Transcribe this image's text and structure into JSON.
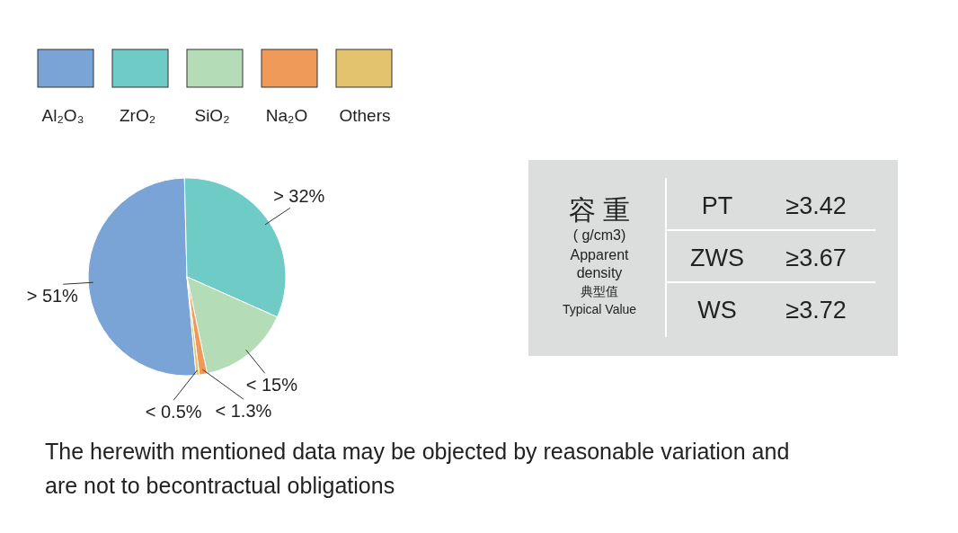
{
  "chart_data": [
    {
      "type": "pie",
      "categories": [
        "Al₂O₃",
        "ZrO₂",
        "SiO₂",
        "Na₂O",
        "Others"
      ],
      "values": [
        51,
        32,
        15,
        1.3,
        0.5
      ],
      "value_labels": [
        "> 51%",
        "> 32%",
        "< 15%",
        "< 1.3%",
        "< 0.5%"
      ],
      "colors": [
        "#7aa3d6",
        "#6fcbc6",
        "#b4dcb6",
        "#f09a5a",
        "#e3c46e"
      ],
      "legend": "top",
      "annotations": [
        "The herewith mentioned data may be objected by reasonable variation and are not to becontractual obligations"
      ]
    },
    {
      "type": "other",
      "title": "容 重",
      "subtitle": "( g/cm3)",
      "annotations": [
        "Apparent",
        "density",
        "典型值",
        "Typical Value"
      ],
      "categories": [
        "PT",
        "ZWS",
        "WS"
      ],
      "value_labels": [
        "≥3.42",
        "≥3.67",
        "≥3.72"
      ]
    }
  ]
}
